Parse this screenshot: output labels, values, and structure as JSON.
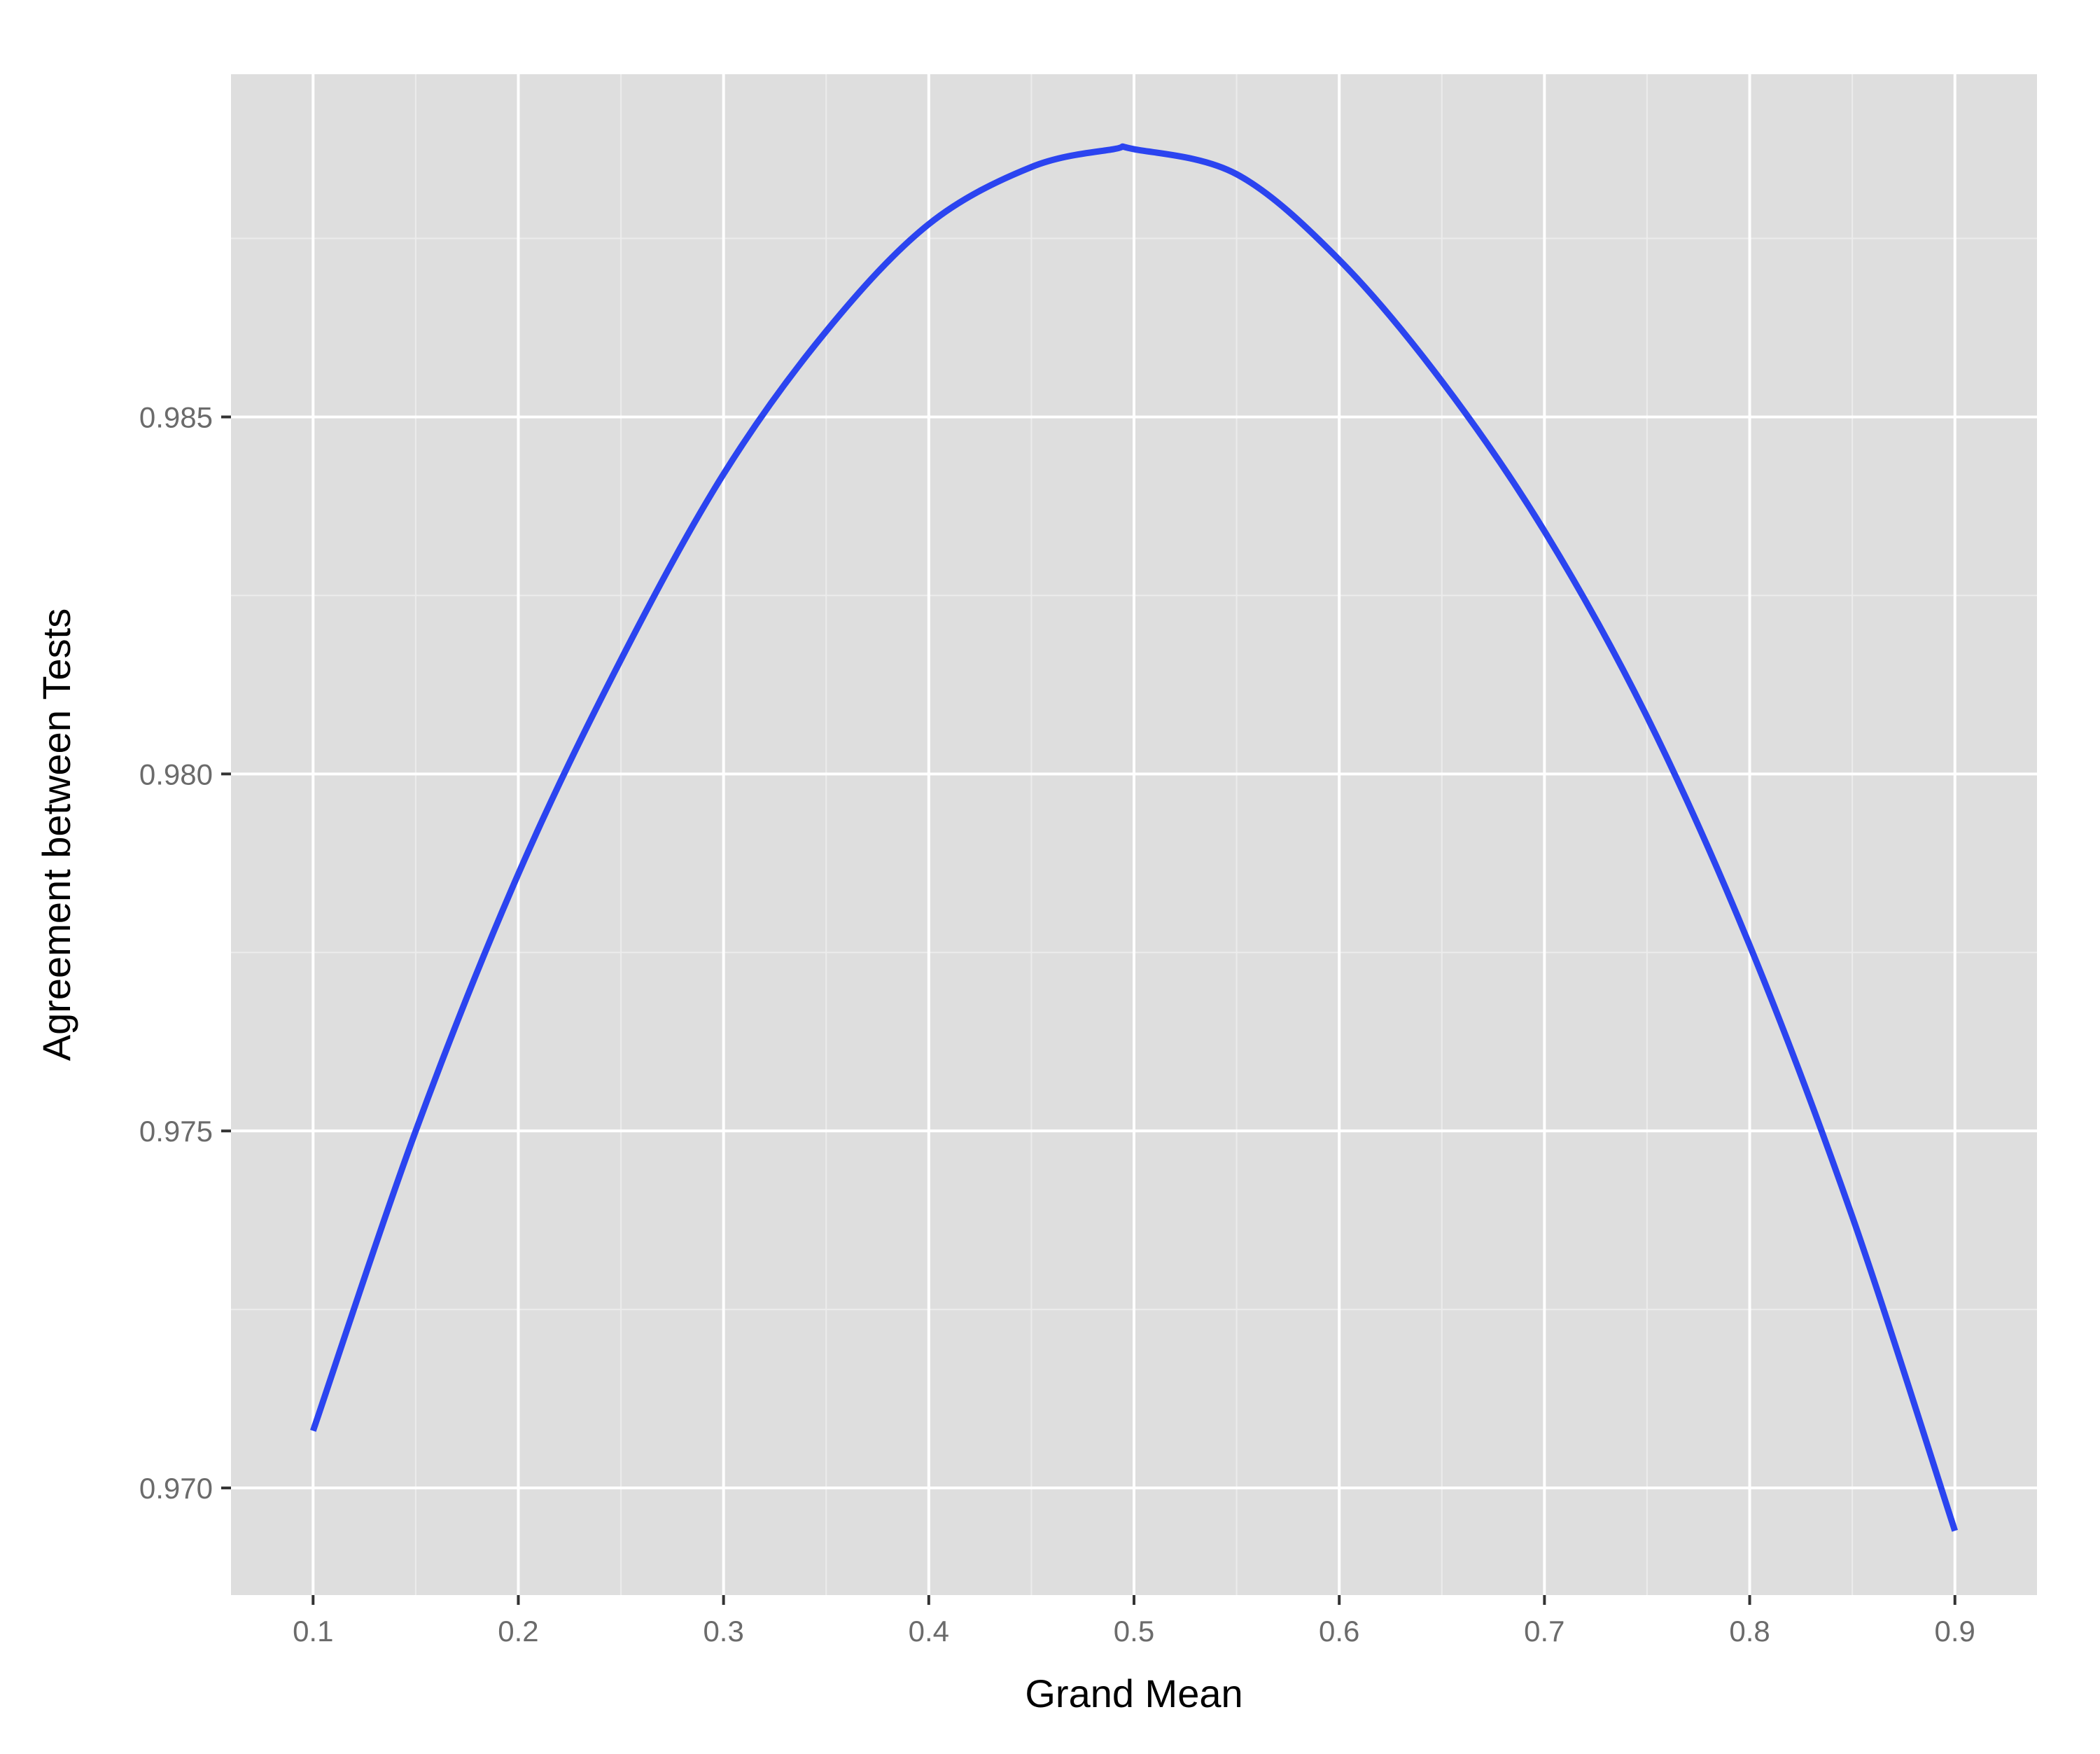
{
  "chart_data": {
    "type": "line",
    "title": "",
    "xlabel": "Grand Mean",
    "ylabel": "Agreement between Tests",
    "xlim": [
      0.06,
      0.94
    ],
    "ylim": [
      0.9685,
      0.9898
    ],
    "x_ticks": [
      0.1,
      0.2,
      0.3,
      0.4,
      0.5,
      0.6,
      0.7,
      0.8,
      0.9
    ],
    "x_tick_labels": [
      "0.1",
      "0.2",
      "0.3",
      "0.4",
      "0.5",
      "0.6",
      "0.7",
      "0.8",
      "0.9"
    ],
    "y_ticks": [
      0.97,
      0.975,
      0.98,
      0.985
    ],
    "y_tick_labels": [
      "0.970",
      "0.975",
      "0.980",
      "0.985"
    ],
    "grid": true,
    "legend": "none",
    "colors": {
      "panel": "#dedede",
      "grid_major": "#ffffff",
      "grid_minor": "#ececec",
      "line": "#2b44f0",
      "tick_label": "#6b6b6b",
      "axis_title": "#000000"
    },
    "series": [
      {
        "x": [
          0.1,
          0.15,
          0.2,
          0.25,
          0.3,
          0.35,
          0.4,
          0.45,
          0.49,
          0.5,
          0.55,
          0.6,
          0.65,
          0.7,
          0.75,
          0.8,
          0.85,
          0.9
        ],
        "y": [
          0.9708,
          0.975,
          0.9786,
          0.9816,
          0.9842,
          0.9862,
          0.9877,
          0.9885,
          0.98875,
          0.98875,
          0.9884,
          0.9872,
          0.9855,
          0.9834,
          0.9808,
          0.9776,
          0.9738,
          0.9694
        ]
      }
    ]
  }
}
